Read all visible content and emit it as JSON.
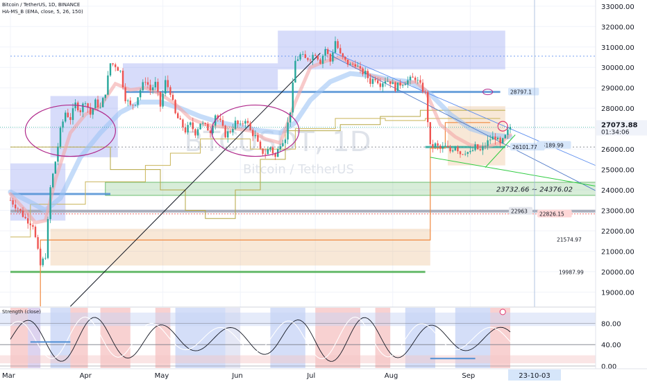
{
  "header": {
    "symbol_line": "Bitcoin / TetherUS, 1D, BINANCE",
    "indicator_line": "HA-MS_B (EMA, close, 5, 26, 150)"
  },
  "watermark": {
    "ticker": "BTCUSDT, 1D",
    "name": "Bitcoin / TetherUS"
  },
  "oscillator": {
    "title": "Strength (close)",
    "axis_labels": [
      "80.00",
      "40.00",
      "0.00"
    ]
  },
  "colors": {
    "up": "#26a69a",
    "down": "#ef5350",
    "zone_blue": "#7b8cf0",
    "zone_orange": "#e8b47a",
    "zone_green": "#4caf50",
    "trend_blue": "#5b8def"
  },
  "chart_data": {
    "type": "candlestick",
    "y_axis": {
      "min": 18300,
      "max": 33300,
      "ticks": [
        19000,
        20000,
        21000,
        22000,
        23000,
        24000,
        25000,
        26000,
        27000,
        28000,
        29000,
        30000,
        31000,
        32000,
        33000
      ],
      "tick_labels": [
        "19000.00",
        "20000.00",
        "21000.00",
        "22000.00",
        "23000.00",
        "24000.00",
        "25000.00",
        "26000.00",
        "27000.00",
        "28000.00",
        "29000.00",
        "30000.00",
        "31000.00",
        "32000.00",
        "33000.00"
      ]
    },
    "x_axis": {
      "labels": [
        "Mar",
        "Apr",
        "May",
        "Jun",
        "Jul",
        "Aug",
        "Sep"
      ],
      "day_index": [
        0,
        31,
        61,
        92,
        122,
        153,
        184
      ],
      "cursor_label": "23-10-03",
      "cursor_day": 216
    },
    "last_price": {
      "value": 27073.88,
      "label": "27073.88",
      "countdown": "01:34:06"
    },
    "level_labels": [
      {
        "value": 28797.1,
        "label": "28797.1"
      },
      {
        "value": 26189.99,
        "label": "26189.99"
      },
      {
        "value": 26101.77,
        "label": "26101.77"
      },
      {
        "value": 22963,
        "label": "22963"
      },
      {
        "value": 22826.15,
        "label": "22826.15"
      },
      {
        "value": 21574.97,
        "label": "21574.97"
      },
      {
        "value": 19987.99,
        "label": "19987.99"
      }
    ],
    "zone_label": {
      "text": "23732.66 ~ 24376.02",
      "low": 23732.66,
      "high": 24376.02
    },
    "close_path": [
      [
        0,
        23500
      ],
      [
        3,
        23100
      ],
      [
        6,
        22600
      ],
      [
        9,
        22300
      ],
      [
        12,
        20300
      ],
      [
        14,
        20800
      ],
      [
        16,
        24100
      ],
      [
        18,
        25400
      ],
      [
        20,
        26900
      ],
      [
        22,
        27800
      ],
      [
        24,
        27500
      ],
      [
        26,
        28200
      ],
      [
        28,
        27900
      ],
      [
        30,
        28400
      ],
      [
        32,
        27700
      ],
      [
        34,
        28300
      ],
      [
        36,
        28000
      ],
      [
        38,
        28800
      ],
      [
        40,
        30200
      ],
      [
        42,
        30100
      ],
      [
        44,
        29800
      ],
      [
        46,
        28500
      ],
      [
        48,
        28100
      ],
      [
        50,
        28300
      ],
      [
        52,
        28900
      ],
      [
        54,
        29400
      ],
      [
        56,
        28900
      ],
      [
        58,
        29200
      ],
      [
        60,
        28100
      ],
      [
        62,
        29300
      ],
      [
        64,
        28800
      ],
      [
        66,
        27700
      ],
      [
        68,
        27300
      ],
      [
        70,
        26900
      ],
      [
        72,
        27200
      ],
      [
        74,
        26800
      ],
      [
        76,
        27300
      ],
      [
        78,
        27100
      ],
      [
        80,
        26900
      ],
      [
        82,
        27700
      ],
      [
        84,
        27300
      ],
      [
        86,
        26700
      ],
      [
        88,
        26900
      ],
      [
        90,
        27300
      ],
      [
        92,
        27100
      ],
      [
        94,
        27500
      ],
      [
        96,
        26900
      ],
      [
        98,
        26600
      ],
      [
        100,
        25900
      ],
      [
        102,
        25800
      ],
      [
        104,
        26100
      ],
      [
        106,
        25600
      ],
      [
        108,
        26300
      ],
      [
        110,
        26600
      ],
      [
        112,
        27900
      ],
      [
        114,
        30300
      ],
      [
        116,
        30600
      ],
      [
        118,
        30400
      ],
      [
        120,
        30500
      ],
      [
        122,
        30700
      ],
      [
        124,
        30300
      ],
      [
        126,
        30900
      ],
      [
        128,
        30300
      ],
      [
        130,
        31300
      ],
      [
        132,
        30600
      ],
      [
        134,
        30300
      ],
      [
        136,
        30100
      ],
      [
        138,
        30200
      ],
      [
        140,
        29800
      ],
      [
        142,
        29700
      ],
      [
        144,
        29300
      ],
      [
        146,
        29500
      ],
      [
        148,
        29200
      ],
      [
        150,
        29400
      ],
      [
        152,
        29300
      ],
      [
        154,
        29000
      ],
      [
        156,
        29200
      ],
      [
        158,
        29300
      ],
      [
        160,
        29400
      ],
      [
        162,
        29500
      ],
      [
        164,
        29100
      ],
      [
        166,
        28700
      ],
      [
        168,
        26100
      ],
      [
        170,
        26200
      ],
      [
        172,
        26000
      ],
      [
        174,
        26100
      ],
      [
        176,
        25900
      ],
      [
        178,
        26200
      ],
      [
        180,
        25800
      ],
      [
        182,
        25900
      ],
      [
        184,
        25800
      ],
      [
        186,
        26100
      ],
      [
        188,
        25900
      ],
      [
        190,
        26200
      ],
      [
        192,
        26500
      ],
      [
        194,
        26600
      ],
      [
        196,
        26200
      ],
      [
        198,
        26600
      ],
      [
        200,
        27100
      ]
    ],
    "ema_fast": [
      [
        0,
        23800
      ],
      [
        6,
        23000
      ],
      [
        10,
        22400
      ],
      [
        14,
        22500
      ],
      [
        18,
        24500
      ],
      [
        24,
        26800
      ],
      [
        30,
        27700
      ],
      [
        36,
        28100
      ],
      [
        42,
        29200
      ],
      [
        48,
        28900
      ],
      [
        54,
        29000
      ],
      [
        60,
        28700
      ],
      [
        66,
        28200
      ],
      [
        72,
        27500
      ],
      [
        78,
        27200
      ],
      [
        84,
        27100
      ],
      [
        90,
        27000
      ],
      [
        96,
        26900
      ],
      [
        102,
        26500
      ],
      [
        108,
        26300
      ],
      [
        114,
        28300
      ],
      [
        120,
        30000
      ],
      [
        126,
        30300
      ],
      [
        132,
        30500
      ],
      [
        138,
        30100
      ],
      [
        144,
        29600
      ],
      [
        150,
        29400
      ],
      [
        156,
        29200
      ],
      [
        162,
        29300
      ],
      [
        166,
        28900
      ],
      [
        172,
        27200
      ],
      [
        178,
        26600
      ],
      [
        184,
        26200
      ],
      [
        190,
        26100
      ],
      [
        196,
        26300
      ],
      [
        200,
        26700
      ]
    ],
    "ema_slow": [
      [
        0,
        23900
      ],
      [
        8,
        23400
      ],
      [
        14,
        23000
      ],
      [
        20,
        23600
      ],
      [
        28,
        25600
      ],
      [
        36,
        26800
      ],
      [
        44,
        27800
      ],
      [
        52,
        28300
      ],
      [
        60,
        28300
      ],
      [
        68,
        28000
      ],
      [
        76,
        27600
      ],
      [
        84,
        27300
      ],
      [
        92,
        27100
      ],
      [
        100,
        26900
      ],
      [
        108,
        26800
      ],
      [
        114,
        27300
      ],
      [
        120,
        28400
      ],
      [
        128,
        29300
      ],
      [
        136,
        29700
      ],
      [
        144,
        29600
      ],
      [
        152,
        29400
      ],
      [
        160,
        29300
      ],
      [
        168,
        28700
      ],
      [
        176,
        27700
      ],
      [
        184,
        27000
      ],
      [
        192,
        26700
      ],
      [
        200,
        26600
      ]
    ],
    "strength": {
      "ylim": [
        0,
        100
      ],
      "levels": [
        80,
        40,
        0
      ]
    }
  }
}
